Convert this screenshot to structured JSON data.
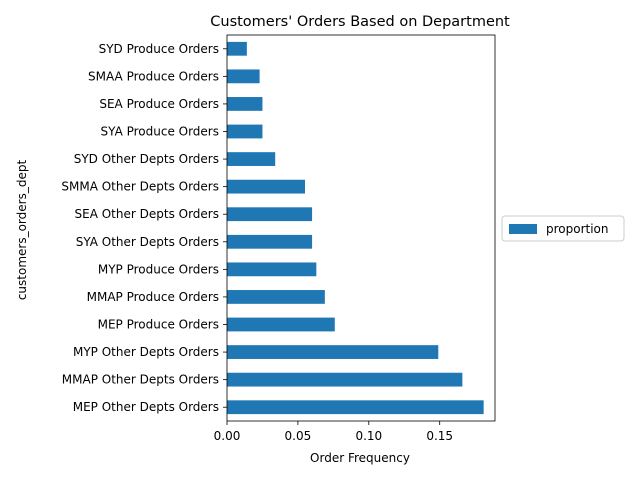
{
  "chart_data": {
    "type": "bar",
    "orientation": "horizontal",
    "title": "Customers' Orders Based on Department",
    "xlabel": "Order Frequency",
    "ylabel": "customers_orders_dept",
    "xlim": [
      0,
      0.189
    ],
    "xticks": [
      0.0,
      0.05,
      0.1,
      0.15
    ],
    "xtick_labels": [
      "0.00",
      "0.05",
      "0.10",
      "0.15"
    ],
    "grid": false,
    "legend_position": "right",
    "bar_color": "#1f77b4",
    "categories": [
      "MEP Other Depts Orders",
      "MMAP Other Depts Orders",
      "MYP Other Depts Orders",
      "MEP Produce Orders",
      "MMAP Produce Orders",
      "MYP Produce Orders",
      "SYA Other Depts Orders",
      "SEA Other Depts Orders",
      "SMMA Other Depts Orders",
      "SYD Other Depts Orders",
      "SYA Produce Orders",
      "SEA Produce Orders",
      "SMAA Produce Orders",
      "SYD Produce Orders"
    ],
    "series": [
      {
        "name": "proportion",
        "values": [
          0.181,
          0.166,
          0.149,
          0.076,
          0.069,
          0.063,
          0.06,
          0.06,
          0.055,
          0.034,
          0.025,
          0.025,
          0.023,
          0.014
        ]
      }
    ]
  }
}
